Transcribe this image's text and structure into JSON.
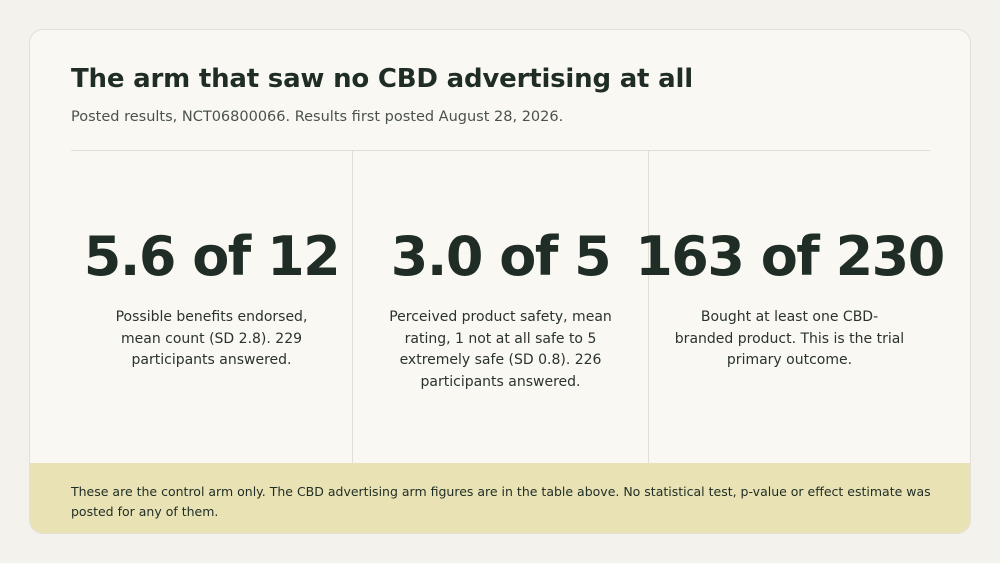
{
  "header": {
    "title": "The arm that saw no CBD advertising at all",
    "subtitle": "Posted results, NCT06800066. Results first posted August 28, 2026."
  },
  "stats": [
    {
      "value": "5.6 of 12",
      "description": "Possible benefits endorsed, mean count (SD 2.8). 229 participants answered."
    },
    {
      "value": "3.0 of 5",
      "description": "Perceived product safety, mean rating, 1 not at all safe to 5 extremely safe (SD 0.8). 226 participants answered."
    },
    {
      "value": "163 of 230",
      "description": "Bought at least one CBD-branded product. This is the trial primary outcome."
    }
  ],
  "footer": {
    "note": "These are the control arm only. The CBD advertising arm figures are in the table above. No statistical test, p-value or effect estimate was posted for any of them."
  },
  "colors": {
    "background": "#f4f2ec",
    "card": "#faf8f2",
    "text": "#1f2d26",
    "footer_band": "#e8e2b4"
  }
}
